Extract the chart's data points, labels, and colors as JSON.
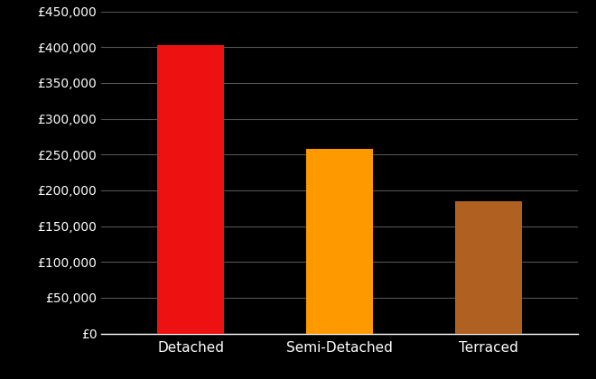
{
  "categories": [
    "Detached",
    "Semi-Detached",
    "Terraced"
  ],
  "values": [
    403000,
    258000,
    185000
  ],
  "bar_colors": [
    "#ee1111",
    "#ff9900",
    "#b06020"
  ],
  "background_color": "#000000",
  "text_color": "#ffffff",
  "grid_color": "#555555",
  "ylim": [
    0,
    450000
  ],
  "ytick_step": 50000,
  "bar_width": 0.45,
  "xlabel_fontsize": 11,
  "ylabel_fontsize": 10,
  "figsize": [
    6.6,
    4.2
  ],
  "dpi": 100
}
